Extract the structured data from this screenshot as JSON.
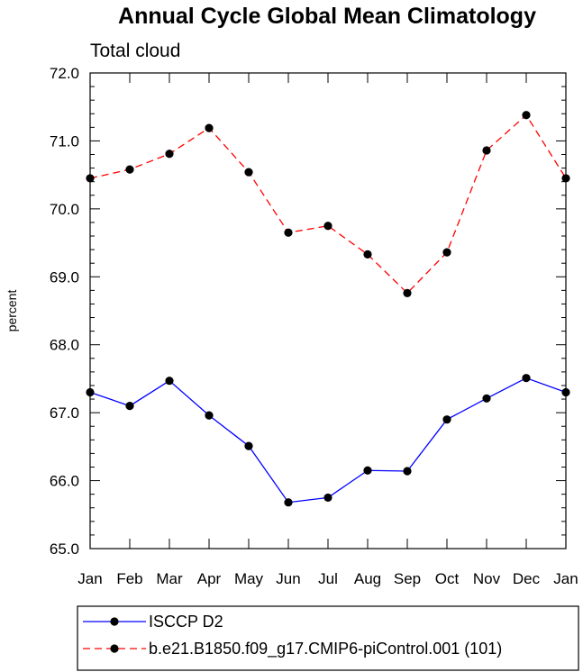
{
  "chart_data": {
    "type": "line",
    "title": "Annual Cycle Global Mean Climatology",
    "subtitle": "Total cloud",
    "ylabel": "percent",
    "xlabel": "",
    "categories": [
      "Jan",
      "Feb",
      "Mar",
      "Apr",
      "May",
      "Jun",
      "Jul",
      "Aug",
      "Sep",
      "Oct",
      "Nov",
      "Dec",
      "Jan"
    ],
    "ylim": [
      65.0,
      72.0
    ],
    "yticks": [
      "65.0",
      "66.0",
      "67.0",
      "68.0",
      "69.0",
      "70.0",
      "71.0",
      "72.0"
    ],
    "legend_position": "bottom",
    "series": [
      {
        "name": "ISCCP D2",
        "color": "#0000ff",
        "dash": "solid",
        "values": [
          67.3,
          67.1,
          67.47,
          66.96,
          66.51,
          65.68,
          65.75,
          66.15,
          66.14,
          66.9,
          67.21,
          67.51,
          67.3
        ]
      },
      {
        "name": "b.e21.B1850.f09_g17.CMIP6-piControl.001 (101)",
        "color": "#ff0000",
        "dash": "dashed",
        "values": [
          70.45,
          70.58,
          70.81,
          71.19,
          70.54,
          69.65,
          69.75,
          69.33,
          68.76,
          69.36,
          70.86,
          71.38,
          70.45
        ]
      }
    ]
  }
}
